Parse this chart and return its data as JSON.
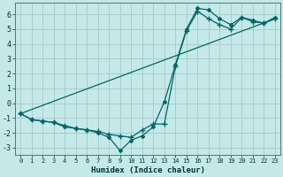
{
  "xlabel": "Humidex (Indice chaleur)",
  "background_color": "#c5e8e8",
  "grid_color": "#aacece",
  "line_color": "#006666",
  "line1_x": [
    0,
    1,
    2,
    3,
    4,
    5,
    6,
    7,
    8,
    9,
    10,
    11,
    12,
    13,
    14,
    15,
    16,
    17,
    18,
    19,
    20,
    21,
    22,
    23
  ],
  "line1_y": [
    -0.7,
    -1.1,
    -1.2,
    -1.3,
    -1.6,
    -1.7,
    -1.8,
    -2.0,
    -2.3,
    -3.2,
    -2.5,
    -2.2,
    -1.6,
    0.1,
    2.6,
    5.0,
    6.4,
    6.3,
    5.7,
    5.3,
    5.8,
    5.6,
    5.4,
    5.8
  ],
  "line2_x": [
    0,
    1,
    2,
    3,
    4,
    5,
    6,
    7,
    8,
    9,
    10,
    11,
    12,
    13,
    14,
    15,
    16,
    17,
    18,
    19,
    20,
    21,
    22,
    23
  ],
  "line2_y": [
    -0.7,
    -1.1,
    -1.2,
    -1.3,
    -1.5,
    -1.7,
    -1.8,
    -1.9,
    -2.1,
    -2.2,
    -2.3,
    -1.8,
    -1.4,
    -1.4,
    2.5,
    4.9,
    6.2,
    5.7,
    5.3,
    5.0,
    5.8,
    5.5,
    5.4,
    5.7
  ],
  "line3_x": [
    0,
    23
  ],
  "line3_y": [
    -0.7,
    5.7
  ],
  "xlim": [
    -0.5,
    23.5
  ],
  "ylim": [
    -3.5,
    6.8
  ],
  "yticks": [
    -3,
    -2,
    -1,
    0,
    1,
    2,
    3,
    4,
    5,
    6
  ],
  "xticks": [
    0,
    1,
    2,
    3,
    4,
    5,
    6,
    7,
    8,
    9,
    10,
    11,
    12,
    13,
    14,
    15,
    16,
    17,
    18,
    19,
    20,
    21,
    22,
    23
  ]
}
